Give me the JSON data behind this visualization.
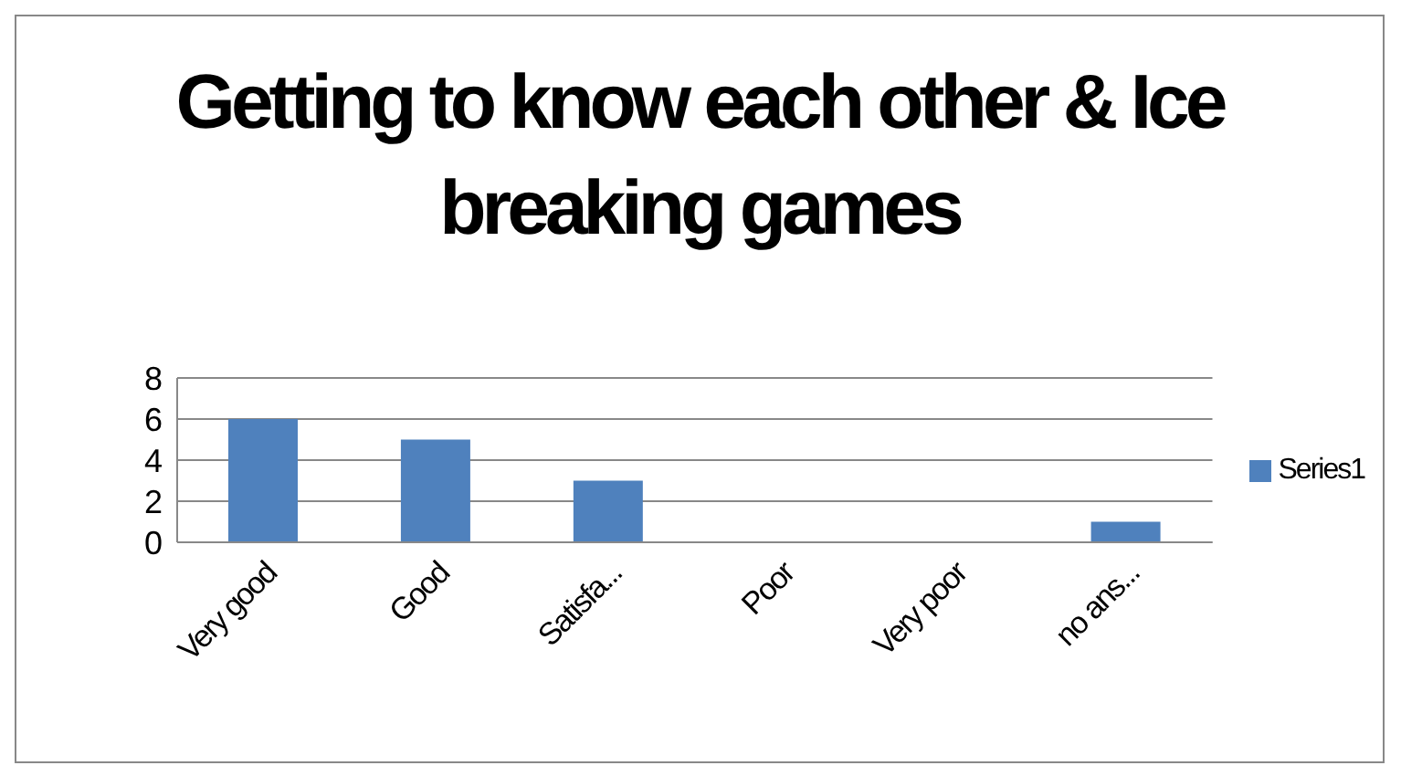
{
  "chart_data": {
    "type": "bar",
    "title": "Getting to know each other & Ice breaking games",
    "categories": [
      "Very good",
      "Good",
      "Satisfa...",
      "Poor",
      "Very poor",
      "no ans..."
    ],
    "series": [
      {
        "name": "Series1",
        "color": "#4f81bd",
        "values": [
          6,
          5,
          3,
          0,
          0,
          1
        ]
      }
    ],
    "ylim": [
      0,
      8
    ],
    "yticks": [
      0,
      2,
      4,
      6,
      8
    ],
    "grid": "y",
    "legend": "right"
  }
}
